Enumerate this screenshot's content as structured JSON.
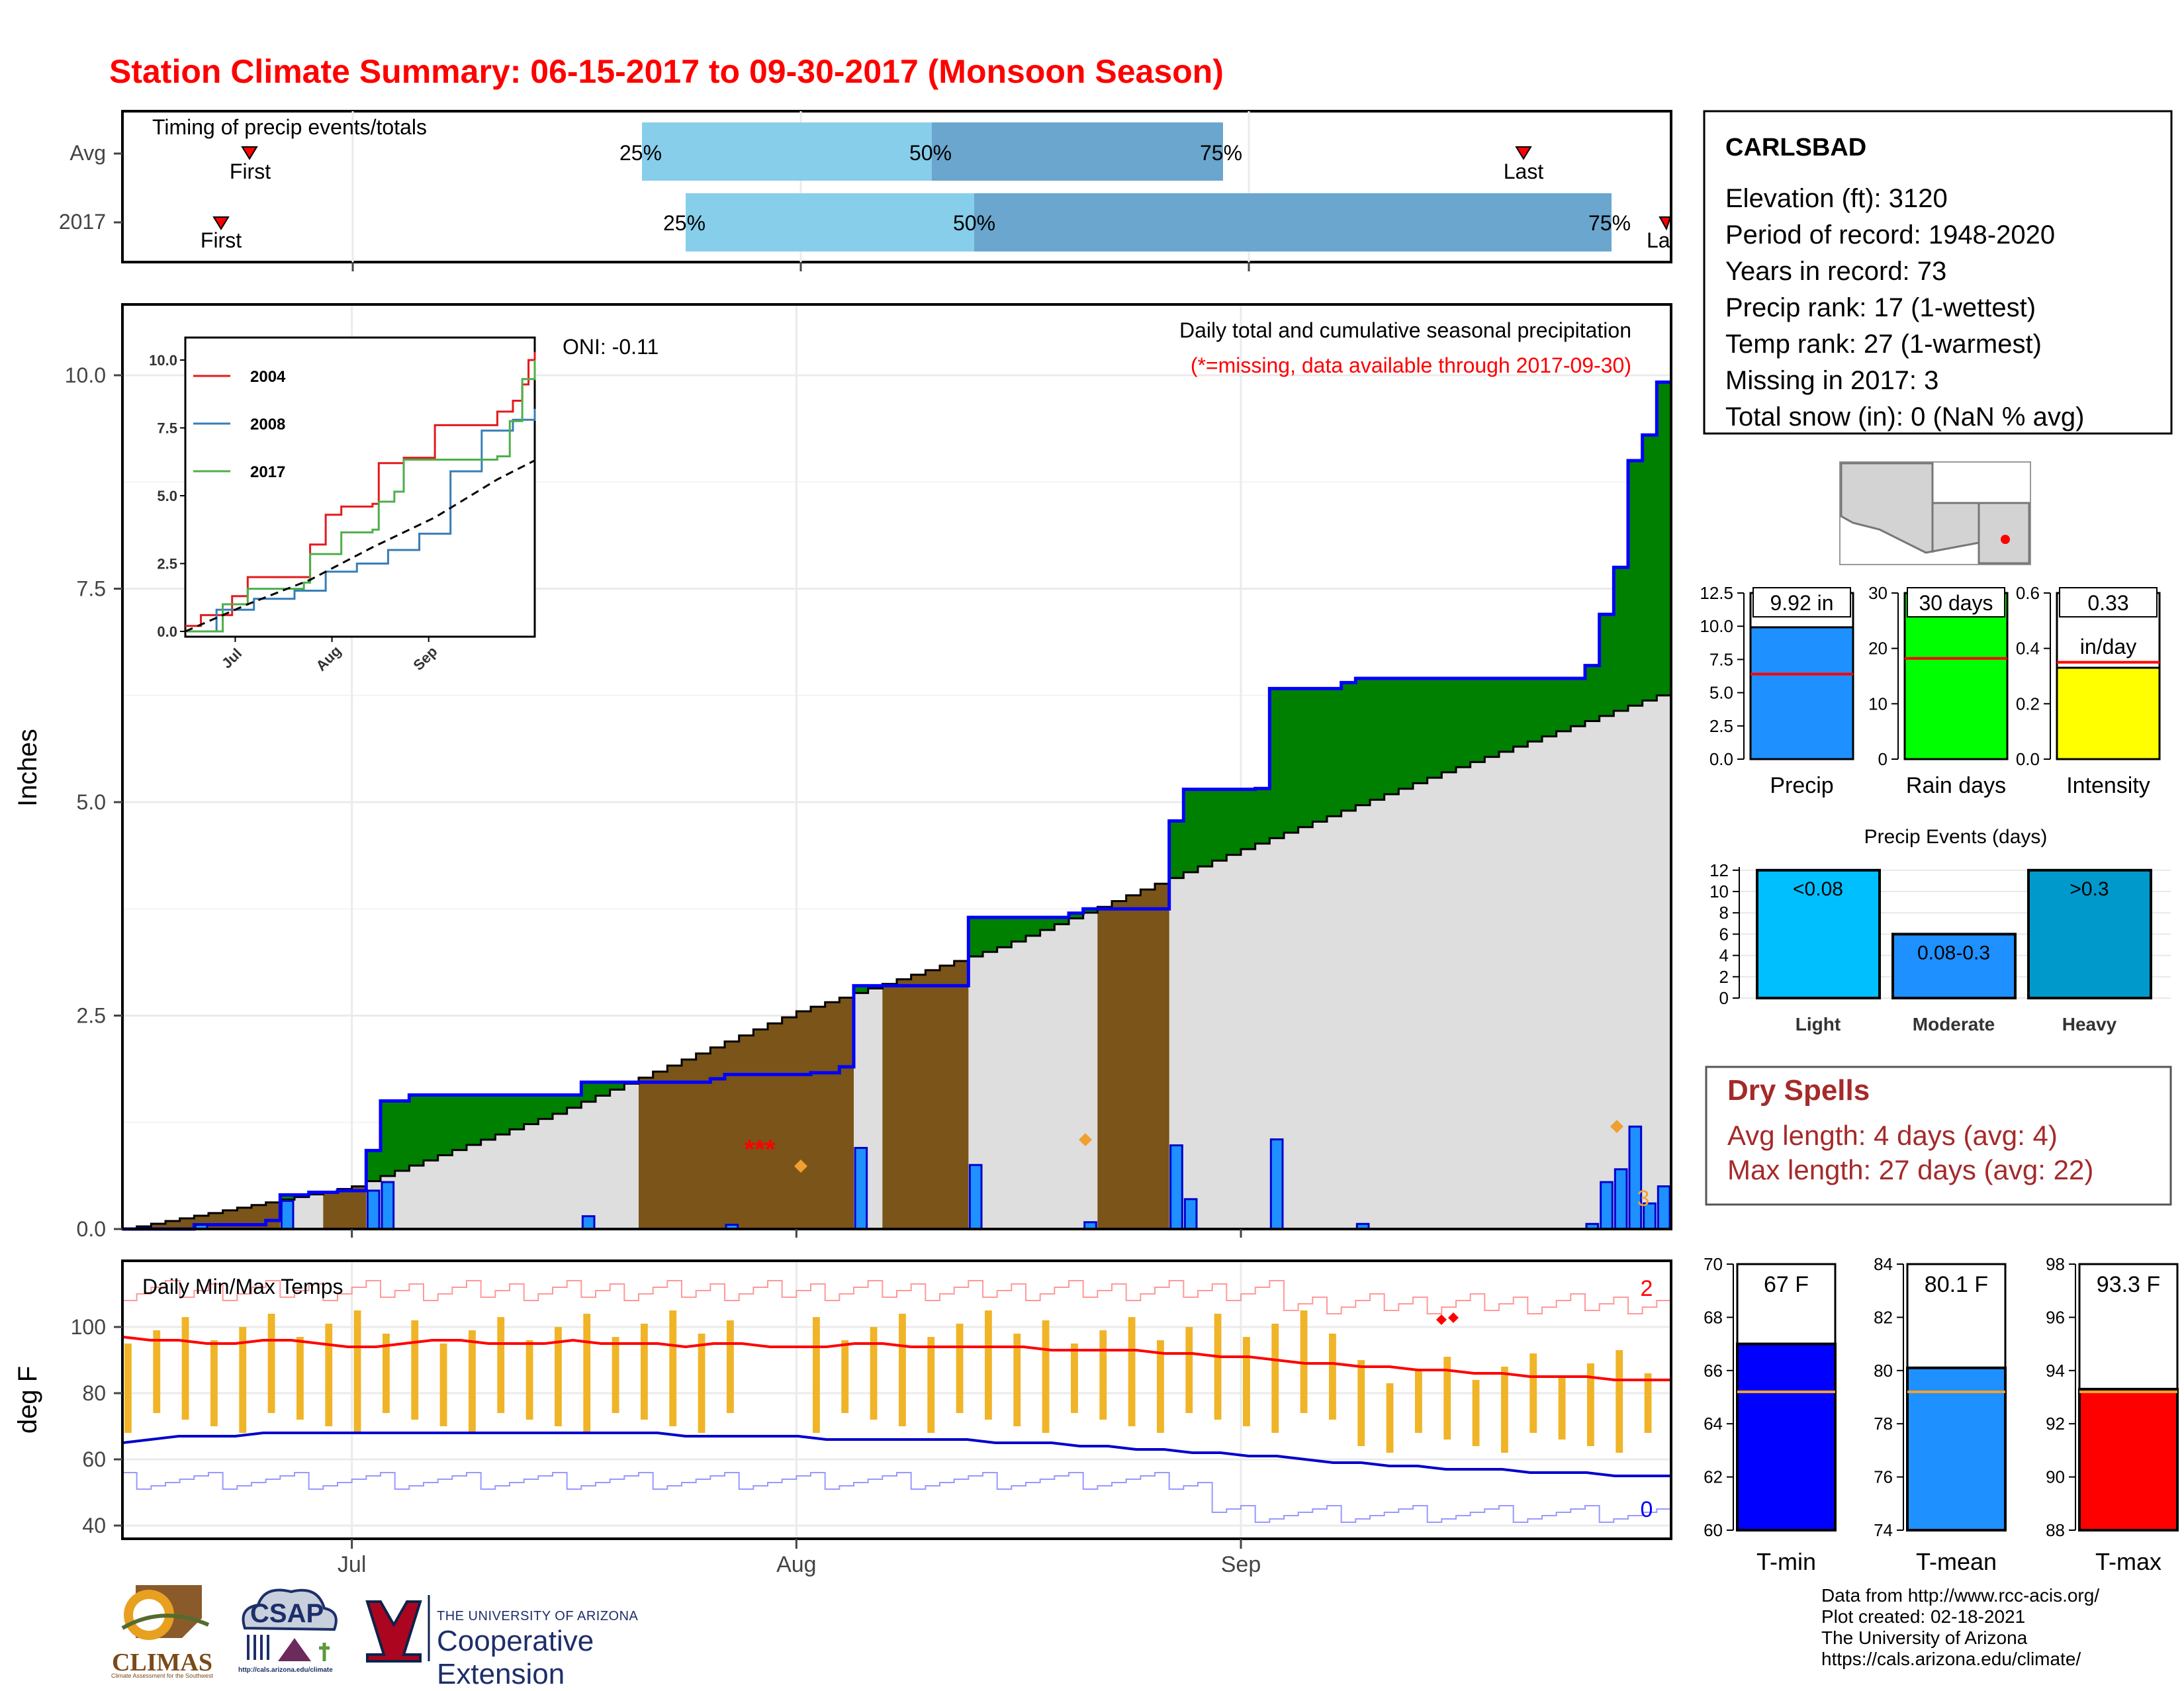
{
  "title": "Station Climate Summary: 06-15-2017 to 09-30-2017 (Monsoon Season)",
  "timing": {
    "title": "Timing of precip events/totals",
    "rows": [
      {
        "label": "Avg",
        "first_label": "First",
        "last_label": "Last",
        "p25": "25%",
        "p50": "50%",
        "p75": "75%"
      },
      {
        "label": "2017",
        "first_label": "First",
        "last_label": "La",
        "p25": "25%",
        "p50": "50%",
        "p75": "75%"
      }
    ]
  },
  "main_panel": {
    "ylabel": "Inches",
    "oni": "ONI: -0.11",
    "caption": "Daily total and cumulative seasonal precipitation",
    "missing_note": "(*=missing, data available through 2017-09-30)",
    "missing_marker": "***",
    "missing_count_label": "3",
    "yticks": [
      "0.0",
      "2.5",
      "5.0",
      "7.5",
      "10.0"
    ]
  },
  "inset": {
    "legend": [
      "2004",
      "2008",
      "2017"
    ],
    "yticks": [
      "0.0",
      "2.5",
      "5.0",
      "7.5",
      "10.0"
    ],
    "xticks": [
      "Jul",
      "Aug",
      "Sep"
    ]
  },
  "temp_panel": {
    "title": "Daily Min/Max Temps",
    "ylabel": "deg F",
    "yticks": [
      "40",
      "60",
      "80",
      "100"
    ],
    "record_high_count": "2",
    "record_low_count": "0"
  },
  "xticks": [
    "Jul",
    "Aug",
    "Sep"
  ],
  "station": {
    "name": "CARLSBAD",
    "lines": [
      "Elevation (ft): 3120",
      "Period of record: 1948-2020",
      "Years in record: 73",
      "Precip rank: 17 (1-wettest)",
      "Temp rank: 27 (1-warmest)",
      "Missing in 2017: 3",
      "Total snow (in): 0 (NaN % avg)"
    ]
  },
  "minibars": [
    {
      "name": "Precip",
      "label": "9.92 in",
      "value": 9.92,
      "avg": 6.4,
      "ymax": 12.5,
      "ticks": [
        "0.0",
        "2.5",
        "5.0",
        "7.5",
        "10.0",
        "12.5"
      ],
      "color": "#1e90ff"
    },
    {
      "name": "Rain days",
      "label": "30 days",
      "value": 30,
      "avg": 18.2,
      "ymax": 30,
      "ticks": [
        "0",
        "10",
        "20",
        "30"
      ],
      "color": "#00ff00"
    },
    {
      "name": "Intensity",
      "label": "0.33",
      "label2": "in/day",
      "value": 0.33,
      "avg": 0.35,
      "ymax": 0.6,
      "ticks": [
        "0.0",
        "0.2",
        "0.4",
        "0.6"
      ],
      "color": "#ffff00"
    }
  ],
  "events": {
    "title": "Precip Events (days)",
    "yticks": [
      "0",
      "2",
      "4",
      "6",
      "8",
      "10",
      "12"
    ],
    "bars": [
      {
        "name": "Light",
        "label": "<0.08",
        "value": 12,
        "color": "#00bfff"
      },
      {
        "name": "Moderate",
        "label": "0.08-0.3",
        "value": 6,
        "color": "#1e90ff"
      },
      {
        "name": "Heavy",
        "label": ">0.3",
        "value": 12,
        "color": "#0099cc"
      }
    ]
  },
  "dry_spells": {
    "title": "Dry Spells",
    "avg": "Avg length: 4 days (avg: 4)",
    "max": "Max length: 27 days (avg: 22)"
  },
  "temp_bars": [
    {
      "name": "T-min",
      "label": "67 F",
      "value": 67.0,
      "avg": 65.2,
      "ymin": 60,
      "ymax": 70,
      "ticks": [
        "60",
        "62",
        "64",
        "66",
        "68",
        "70"
      ],
      "color": "#0000ff"
    },
    {
      "name": "T-mean",
      "label": "80.1 F",
      "value": 80.1,
      "avg": 79.2,
      "ymin": 74,
      "ymax": 84,
      "ticks": [
        "74",
        "76",
        "78",
        "80",
        "82",
        "84"
      ],
      "color": "#1e90ff"
    },
    {
      "name": "T-max",
      "label": "93.3 F",
      "value": 93.3,
      "avg": 93.2,
      "ymin": 88,
      "ymax": 98,
      "ticks": [
        "88",
        "90",
        "92",
        "94",
        "96",
        "98"
      ],
      "color": "#ff0000"
    }
  ],
  "logos": {
    "climas": "CLIMAS",
    "climas_sub": "Climate Assessment for the Southwest",
    "csap": "CSAP",
    "csap_url": "http://cals.arizona.edu/climate",
    "ua_small": "THE UNIVERSITY OF ARIZONA",
    "ua_big": "Cooperative Extension"
  },
  "credits": [
    "Data from http://www.rcc-acis.org/",
    "Plot created: 02-18-2021",
    "The University of Arizona",
    "https://cals.arizona.edu/climate/"
  ],
  "colors": {
    "title": "#ff0000",
    "above_avg_fill": "#008000",
    "below_avg_fill": "#7a5418",
    "climo_fill": "#dedede",
    "daily_bar": "#1e90ff",
    "temp_bar": "#f0b428",
    "dry_spell_text": "#a52a2a"
  },
  "chart_data": [
    {
      "type": "line",
      "title": "Daily total and cumulative seasonal precipitation",
      "ylabel": "Inches",
      "ylim": [
        0,
        10.8
      ],
      "x_range": [
        "2017-06-15",
        "2017-09-30"
      ],
      "series": [
        {
          "name": "2017 cumulative",
          "points": [
            [
              "2017-06-15",
              0.0
            ],
            [
              "2017-06-20",
              0.05
            ],
            [
              "2017-06-25",
              0.1
            ],
            [
              "2017-06-26",
              0.4
            ],
            [
              "2017-06-28",
              0.43
            ],
            [
              "2017-06-30",
              0.45
            ],
            [
              "2017-07-02",
              0.92
            ],
            [
              "2017-07-03",
              1.5
            ],
            [
              "2017-07-05",
              1.57
            ],
            [
              "2017-07-16",
              1.57
            ],
            [
              "2017-07-17",
              1.72
            ],
            [
              "2017-07-26",
              1.76
            ],
            [
              "2017-07-27",
              1.81
            ],
            [
              "2017-08-02",
              1.83
            ],
            [
              "2017-08-04",
              1.9
            ],
            [
              "2017-08-05",
              2.85
            ],
            [
              "2017-08-12",
              2.85
            ],
            [
              "2017-08-13",
              3.65
            ],
            [
              "2017-08-20",
              3.7
            ],
            [
              "2017-08-21",
              3.75
            ],
            [
              "2017-08-26",
              3.75
            ],
            [
              "2017-08-27",
              4.78
            ],
            [
              "2017-08-28",
              5.15
            ],
            [
              "2017-09-02",
              5.16
            ],
            [
              "2017-09-03",
              6.33
            ],
            [
              "2017-09-08",
              6.4
            ],
            [
              "2017-09-09",
              6.45
            ],
            [
              "2017-09-24",
              6.45
            ],
            [
              "2017-09-25",
              6.6
            ],
            [
              "2017-09-26",
              7.2
            ],
            [
              "2017-09-27",
              7.75
            ],
            [
              "2017-09-28",
              9.0
            ],
            [
              "2017-09-29",
              9.3
            ],
            [
              "2017-09-30",
              9.92
            ]
          ]
        },
        {
          "name": "average cumulative",
          "points": [
            [
              "2017-06-15",
              0.0
            ],
            [
              "2017-07-01",
              0.5
            ],
            [
              "2017-07-15",
              1.35
            ],
            [
              "2017-08-01",
              2.55
            ],
            [
              "2017-08-15",
              3.3
            ],
            [
              "2017-09-01",
              4.45
            ],
            [
              "2017-09-15",
              5.35
            ],
            [
              "2017-09-30",
              6.25
            ]
          ]
        }
      ],
      "daily_precip": [
        [
          "2017-06-20",
          0.05
        ],
        [
          "2017-06-26",
          0.33
        ],
        [
          "2017-07-02",
          0.45
        ],
        [
          "2017-07-03",
          0.55
        ],
        [
          "2017-07-17",
          0.15
        ],
        [
          "2017-07-27",
          0.05
        ],
        [
          "2017-08-05",
          0.95
        ],
        [
          "2017-08-13",
          0.75
        ],
        [
          "2017-08-21",
          0.08
        ],
        [
          "2017-08-27",
          0.98
        ],
        [
          "2017-08-28",
          0.35
        ],
        [
          "2017-09-03",
          1.05
        ],
        [
          "2017-09-09",
          0.06
        ],
        [
          "2017-09-25",
          0.06
        ],
        [
          "2017-09-26",
          0.55
        ],
        [
          "2017-09-27",
          0.7
        ],
        [
          "2017-09-28",
          1.2
        ],
        [
          "2017-09-29",
          0.3
        ],
        [
          "2017-09-30",
          0.5
        ]
      ]
    },
    {
      "type": "line",
      "title": "",
      "ylim": [
        0,
        10.5
      ],
      "series": [
        {
          "name": "2004",
          "values": [
            [
              0,
              0.2
            ],
            [
              5,
              0.6
            ],
            [
              15,
              1.3
            ],
            [
              20,
              2.0
            ],
            [
              40,
              3.2
            ],
            [
              45,
              4.3
            ],
            [
              50,
              4.6
            ],
            [
              60,
              4.7
            ],
            [
              62,
              6.2
            ],
            [
              70,
              6.4
            ],
            [
              80,
              7.6
            ],
            [
              100,
              8.1
            ],
            [
              105,
              8.5
            ],
            [
              108,
              9.1
            ],
            [
              110,
              10.0
            ],
            [
              112,
              10.3
            ]
          ]
        },
        {
          "name": "2008",
          "values": [
            [
              0,
              0.0
            ],
            [
              10,
              0.8
            ],
            [
              22,
              1.2
            ],
            [
              35,
              1.5
            ],
            [
              45,
              2.2
            ],
            [
              55,
              2.5
            ],
            [
              65,
              3.0
            ],
            [
              75,
              3.6
            ],
            [
              85,
              5.9
            ],
            [
              95,
              7.4
            ],
            [
              105,
              7.8
            ],
            [
              112,
              8.2
            ]
          ]
        },
        {
          "name": "2017",
          "values": [
            [
              0,
              0.0
            ],
            [
              12,
              1.0
            ],
            [
              20,
              1.57
            ],
            [
              38,
              1.8
            ],
            [
              40,
              2.85
            ],
            [
              50,
              3.65
            ],
            [
              60,
              3.75
            ],
            [
              62,
              4.78
            ],
            [
              67,
              5.15
            ],
            [
              70,
              6.33
            ],
            [
              100,
              6.45
            ],
            [
              104,
              7.75
            ],
            [
              108,
              9.3
            ],
            [
              112,
              10.0
            ]
          ]
        },
        {
          "name": "average",
          "values": [
            [
              0,
              0.0
            ],
            [
              20,
              1.0
            ],
            [
              40,
              1.9
            ],
            [
              60,
              3.1
            ],
            [
              80,
              4.2
            ],
            [
              100,
              5.6
            ],
            [
              112,
              6.3
            ]
          ]
        }
      ],
      "xticks": [
        "Jul",
        "Aug",
        "Sep"
      ]
    },
    {
      "type": "bar",
      "title": "Daily Min/Max Temps",
      "ylabel": "deg F",
      "ylim": [
        37,
        118
      ],
      "series": [
        {
          "name": "average high",
          "values": [
            97,
            96,
            96,
            95,
            95,
            96,
            96,
            95,
            94,
            94,
            95,
            96,
            96,
            95,
            95,
            95,
            96,
            95,
            95,
            95,
            94,
            95,
            95,
            94,
            94,
            94,
            95,
            95,
            94,
            94,
            94,
            94,
            94,
            93,
            93,
            93,
            93,
            92,
            92,
            91,
            91,
            90,
            89,
            89,
            88,
            88,
            87,
            87,
            86,
            86,
            85,
            85,
            85,
            84,
            84
          ]
        },
        {
          "name": "average low",
          "values": [
            65,
            66,
            67,
            67,
            67,
            68,
            68,
            68,
            68,
            68,
            68,
            68,
            68,
            68,
            68,
            68,
            68,
            68,
            68,
            68,
            67,
            67,
            67,
            67,
            67,
            66,
            66,
            66,
            66,
            66,
            66,
            65,
            65,
            65,
            64,
            64,
            63,
            63,
            62,
            62,
            61,
            61,
            60,
            59,
            59,
            58,
            58,
            57,
            57,
            57,
            56,
            56,
            56,
            55,
            55
          ]
        }
      ]
    }
  ]
}
